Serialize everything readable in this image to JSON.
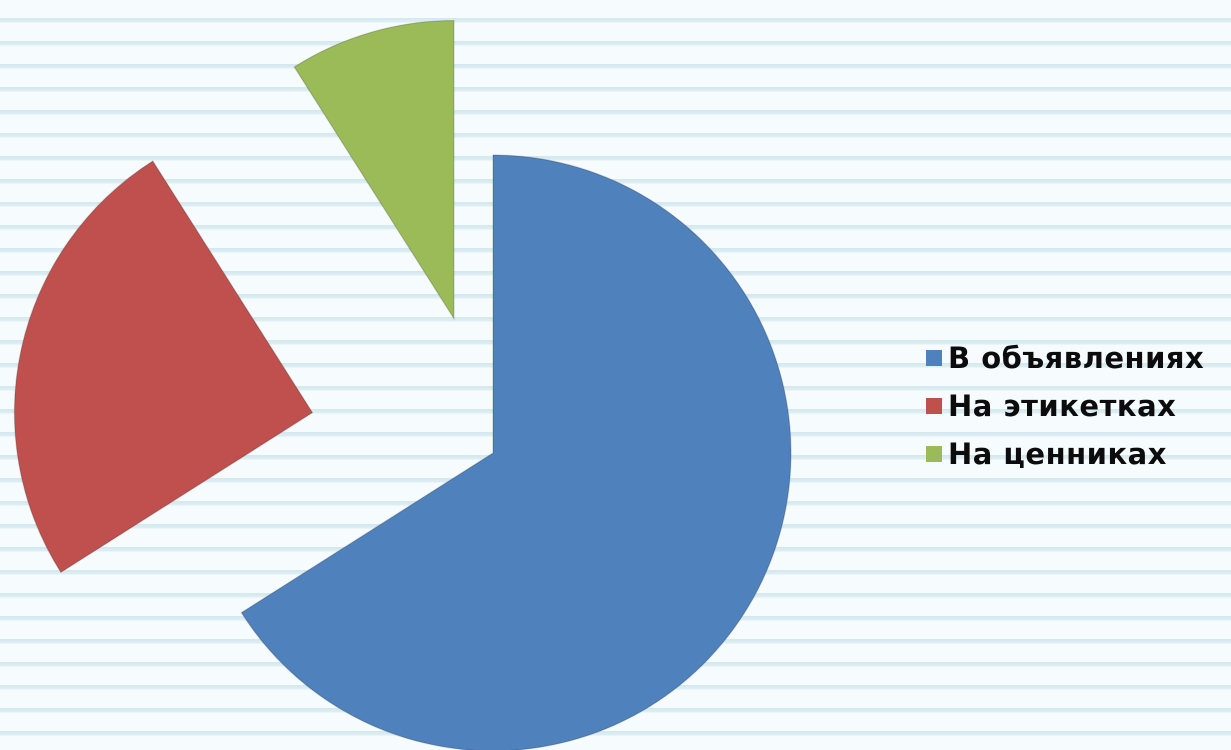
{
  "chart_data": {
    "type": "pie",
    "style": "exploded",
    "legend_position": "right",
    "slices": [
      {
        "label": "В объявлениях",
        "value": 66,
        "color": "#4f81bd"
      },
      {
        "label": "На этикетках",
        "value": 25,
        "color": "#c0504d"
      },
      {
        "label": "На ценниках",
        "value": 9,
        "color": "#9bbb59"
      }
    ]
  }
}
